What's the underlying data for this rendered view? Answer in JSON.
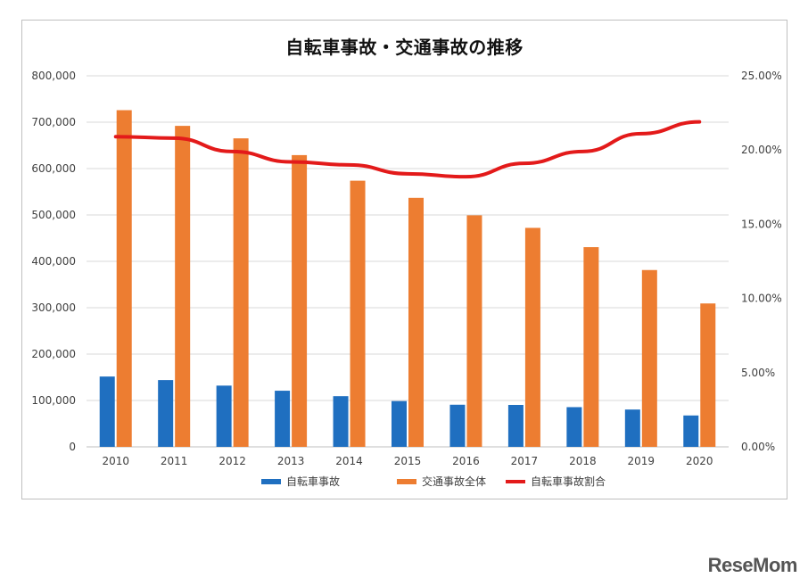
{
  "watermark": "ReseMom",
  "chart_data": {
    "type": "bar",
    "title": "自転車事故・交通事故の推移",
    "categories": [
      "2010",
      "2011",
      "2012",
      "2013",
      "2014",
      "2015",
      "2016",
      "2017",
      "2018",
      "2019",
      "2020"
    ],
    "series": [
      {
        "name": "自転車事故",
        "type": "bar",
        "axis": "left",
        "color": "#1f6fc0",
        "values": [
          151626,
          144018,
          132048,
          121040,
          109269,
          98700,
          90836,
          90407,
          85641,
          80473,
          67673
        ]
      },
      {
        "name": "交通事故全体",
        "type": "bar",
        "axis": "left",
        "color": "#ed7d31",
        "values": [
          725924,
          692084,
          665157,
          629033,
          573842,
          536899,
          499201,
          472165,
          430601,
          381237,
          309178
        ]
      },
      {
        "name": "自転車事故割合",
        "type": "line",
        "axis": "right",
        "color": "#e31a1a",
        "values": [
          20.9,
          20.8,
          19.9,
          19.2,
          19.0,
          18.4,
          18.2,
          19.1,
          19.9,
          21.1,
          21.9
        ]
      }
    ],
    "y_left": {
      "ylim": [
        0,
        800000
      ],
      "ticks": [
        "0",
        "100,000",
        "200,000",
        "300,000",
        "400,000",
        "500,000",
        "600,000",
        "700,000",
        "800,000"
      ]
    },
    "y_right": {
      "ylim": [
        0,
        25
      ],
      "ticks": [
        "0.00%",
        "5.00%",
        "10.00%",
        "15.00%",
        "20.00%",
        "25.00%"
      ]
    },
    "grid": true,
    "legend_position": "bottom"
  }
}
